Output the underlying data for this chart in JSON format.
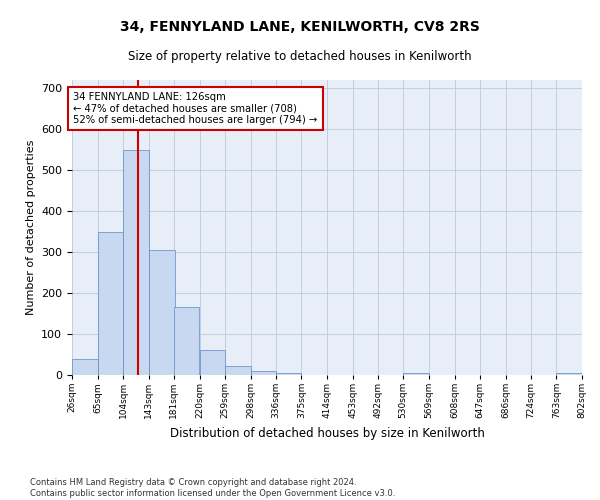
{
  "title1": "34, FENNYLAND LANE, KENILWORTH, CV8 2RS",
  "title2": "Size of property relative to detached houses in Kenilworth",
  "xlabel": "Distribution of detached houses by size in Kenilworth",
  "ylabel": "Number of detached properties",
  "footer1": "Contains HM Land Registry data © Crown copyright and database right 2024.",
  "footer2": "Contains public sector information licensed under the Open Government Licence v3.0.",
  "annotation_line1": "34 FENNYLAND LANE: 126sqm",
  "annotation_line2": "← 47% of detached houses are smaller (708)",
  "annotation_line3": "52% of semi-detached houses are larger (794) →",
  "property_size": 126,
  "bar_color": "#c8d8f0",
  "bar_edge_color": "#5a8ac6",
  "line_color": "#cc0000",
  "annotation_box_color": "#ffffff",
  "annotation_box_edge": "#cc0000",
  "background_color": "#e8eef8",
  "grid_color": "#c0c8d8",
  "bins": [
    26,
    65,
    104,
    143,
    181,
    220,
    259,
    298,
    336,
    375,
    414,
    453,
    492,
    530,
    569,
    608,
    647,
    686,
    724,
    763,
    802
  ],
  "heights": [
    40,
    350,
    550,
    305,
    165,
    60,
    22,
    10,
    5,
    0,
    0,
    0,
    0,
    5,
    0,
    0,
    0,
    0,
    0,
    5
  ],
  "ylim": [
    0,
    720
  ],
  "yticks": [
    0,
    100,
    200,
    300,
    400,
    500,
    600,
    700
  ]
}
